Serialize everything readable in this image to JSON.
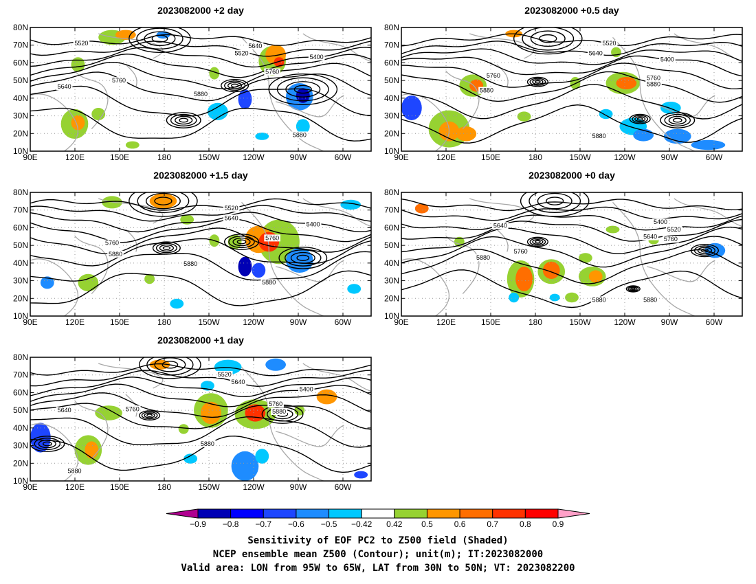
{
  "panels": [
    {
      "id": "p2",
      "title": "2023082000 +2 day",
      "contour_labels": [
        "5520",
        "5640",
        "5520",
        "5400",
        "5760",
        "5640",
        "5760",
        "5880",
        "5880"
      ],
      "lat_ticks": [
        "80N",
        "70N",
        "60N",
        "50N",
        "40N",
        "30N",
        "20N",
        "10N"
      ],
      "lon_ticks": [
        "90E",
        "120E",
        "150E",
        "180",
        "150W",
        "120W",
        "90W",
        "60W"
      ]
    },
    {
      "id": "p05",
      "title": "2023082000 +0.5 day",
      "contour_labels": [
        "5520",
        "5640",
        "5400",
        "5760",
        "5880",
        "5760",
        "5880",
        "5880"
      ],
      "lat_ticks": [
        "80N",
        "70N",
        "60N",
        "50N",
        "40N",
        "30N",
        "20N",
        "10N"
      ],
      "lon_ticks": [
        "90E",
        "120E",
        "150E",
        "180",
        "150W",
        "120W",
        "90W",
        "60W"
      ]
    },
    {
      "id": "p15",
      "title": "2023082000 +1.5 day",
      "contour_labels": [
        "5520",
        "5640",
        "5400",
        "5760",
        "5880",
        "5760",
        "5880",
        "5880"
      ],
      "lat_ticks": [
        "80N",
        "70N",
        "60N",
        "50N",
        "40N",
        "30N",
        "20N",
        "10N"
      ],
      "lon_ticks": [
        "90E",
        "120E",
        "150E",
        "180",
        "150W",
        "120W",
        "90W",
        "60W"
      ]
    },
    {
      "id": "p0",
      "title": "2023082000 +0 day",
      "contour_labels": [
        "5640",
        "5400",
        "5520",
        "5640",
        "5760",
        "5880",
        "5760",
        "5880",
        "5880"
      ],
      "lat_ticks": [
        "80N",
        "70N",
        "60N",
        "50N",
        "40N",
        "30N",
        "20N",
        "10N"
      ],
      "lon_ticks": [
        "90E",
        "120E",
        "150E",
        "180",
        "150W",
        "120W",
        "90W",
        "60W"
      ]
    },
    {
      "id": "p1",
      "title": "2023082000 +1 day",
      "contour_labels": [
        "5520",
        "5640",
        "5400",
        "5640",
        "5760",
        "5760",
        "5880",
        "5880",
        "5880"
      ],
      "lat_ticks": [
        "80N",
        "70N",
        "60N",
        "50N",
        "40N",
        "30N",
        "20N",
        "10N"
      ],
      "lon_ticks": [
        "90E",
        "120E",
        "150E",
        "180",
        "150W",
        "120W",
        "90W",
        "60W"
      ]
    }
  ],
  "colorbar": {
    "labels": [
      "−0.9",
      "−0.8",
      "−0.7",
      "−0.6",
      "−0.5",
      "−0.42",
      "0.42",
      "0.5",
      "0.6",
      "0.7",
      "0.8",
      "0.9"
    ],
    "colors": [
      "#b00090",
      "#0000b4",
      "#0000ff",
      "#1e46ff",
      "#1e8cff",
      "#00c8ff",
      "#ffffff",
      "#96d232",
      "#ff9600",
      "#ff6e00",
      "#ff3200",
      "#ff0000",
      "#ffa0c8"
    ]
  },
  "caption": {
    "line1": "Sensitivity of EOF PC2 to Z500 field (Shaded)",
    "line2": "NCEP ensemble mean Z500 (Contour); unit(m); IT:2023082000",
    "line3": "Valid area: LON from 95W to 65W, LAT from 30N to 50N; VT: 2023082200"
  }
}
